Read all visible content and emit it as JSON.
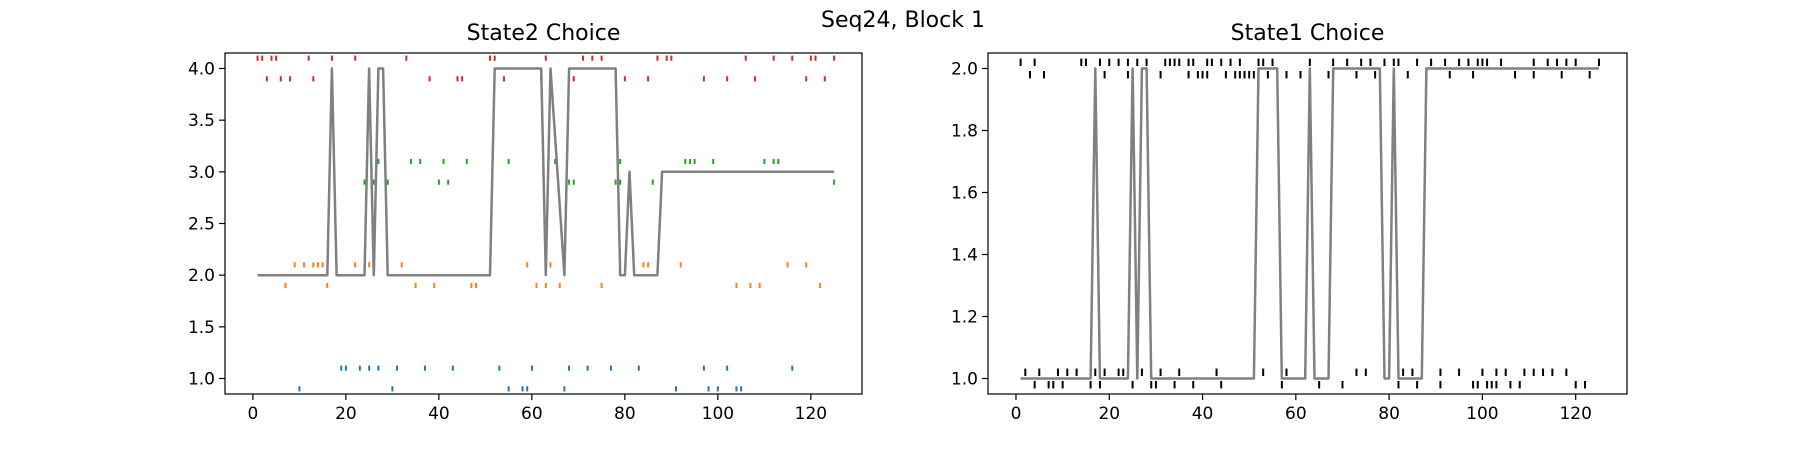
{
  "figure": {
    "suptitle": "Seq24, Block 1"
  },
  "colors": {
    "s1": "#1f77b4",
    "s2": "#ff7f0e",
    "s3": "#2ca02c",
    "s4": "#d62728",
    "s1panel": "#000000",
    "smooth": "#808080"
  },
  "chart_data": [
    {
      "type": "scatter+line",
      "title": "State2 Choice",
      "xlabel": "",
      "ylabel": "",
      "xlim": [
        -6,
        131
      ],
      "ylim": [
        0.85,
        4.15
      ],
      "xticks": [
        0,
        20,
        40,
        60,
        80,
        100,
        120
      ],
      "yticks": [
        1.0,
        1.5,
        2.0,
        2.5,
        3.0,
        3.5,
        4.0
      ],
      "ytick_labels": [
        "1.0",
        "1.5",
        "2.0",
        "2.5",
        "3.0",
        "3.5",
        "4.0"
      ],
      "grid": false,
      "raster": [
        {
          "level": 1,
          "color_key": "s1",
          "up": [
            19,
            20,
            23,
            25,
            27,
            31,
            37,
            43,
            53,
            60,
            68,
            72,
            77,
            83,
            97,
            102,
            116
          ],
          "down": [
            10,
            30,
            55,
            58,
            59,
            67,
            91,
            98,
            100,
            104,
            105
          ]
        },
        {
          "level": 2,
          "color_key": "s2",
          "up": [
            9,
            11,
            13,
            14,
            15,
            18,
            22,
            25,
            32,
            51,
            59,
            64,
            84,
            85,
            92,
            115,
            119
          ],
          "down": [
            7,
            16,
            35,
            39,
            47,
            48,
            61,
            63,
            66,
            75,
            104,
            107,
            109,
            122
          ]
        },
        {
          "level": 3,
          "color_key": "s3",
          "up": [
            27,
            34,
            36,
            41,
            46,
            55,
            65,
            79,
            93,
            94,
            95,
            99,
            110,
            112,
            113
          ],
          "down": [
            24,
            26,
            29,
            40,
            42,
            68,
            69,
            78,
            79,
            86,
            125
          ]
        },
        {
          "level": 4,
          "color_key": "s4",
          "up": [
            1,
            2,
            4,
            5,
            12,
            17,
            22,
            33,
            51,
            52,
            63,
            71,
            73,
            75,
            87,
            89,
            90,
            106,
            112,
            116,
            120,
            121,
            125
          ],
          "down": [
            3,
            6,
            8,
            13,
            38,
            44,
            45,
            54,
            62,
            69,
            78,
            80,
            85,
            97,
            102,
            108,
            119,
            123
          ]
        }
      ],
      "smoothed": {
        "name": "",
        "color_key": "smooth",
        "x": [
          1,
          16,
          17,
          18,
          24,
          25,
          26,
          27,
          28,
          29,
          51,
          52,
          62,
          63,
          64,
          67,
          68,
          78,
          79,
          80,
          81,
          82,
          83,
          87,
          88,
          125
        ],
        "y": [
          2,
          2,
          4,
          2,
          2,
          4,
          2,
          4,
          4,
          2,
          2,
          4,
          4,
          2,
          4,
          2,
          4,
          4,
          2,
          2,
          3,
          2,
          2,
          2,
          3,
          3
        ]
      }
    },
    {
      "type": "scatter+line",
      "title": "State1 Choice",
      "xlabel": "",
      "ylabel": "",
      "xlim": [
        -6,
        131
      ],
      "ylim": [
        0.95,
        2.05
      ],
      "xticks": [
        0,
        20,
        40,
        60,
        80,
        100,
        120
      ],
      "yticks": [
        1.0,
        1.2,
        1.4,
        1.6,
        1.8,
        2.0
      ],
      "ytick_labels": [
        "1.0",
        "1.2",
        "1.4",
        "1.6",
        "1.8",
        "2.0"
      ],
      "grid": false,
      "raster": [
        {
          "level": 1,
          "color_key": "s1panel",
          "up": [
            2,
            5,
            9,
            11,
            13,
            17,
            19,
            22,
            23,
            27,
            31,
            35,
            43,
            53,
            58,
            62,
            67,
            73,
            75,
            83,
            85,
            91,
            95,
            100,
            103,
            105,
            109,
            111,
            113,
            115,
            118
          ],
          "down": [
            4,
            7,
            8,
            10,
            16,
            18,
            25,
            29,
            30,
            34,
            38,
            44,
            57,
            65,
            70,
            82,
            86,
            91,
            98,
            99,
            101,
            102,
            103,
            106,
            108,
            120,
            122
          ]
        },
        {
          "level": 2,
          "color_key": "s1panel",
          "up": [
            1,
            4,
            14,
            15,
            18,
            20,
            22,
            24,
            26,
            28,
            32,
            33,
            34,
            35,
            37,
            38,
            41,
            42,
            44,
            46,
            48,
            52,
            53,
            55,
            63,
            68,
            71,
            74,
            76,
            79,
            81,
            82,
            86,
            89,
            92,
            95,
            97,
            99,
            100,
            101,
            104,
            111,
            114,
            116,
            118,
            120,
            125
          ],
          "down": [
            3,
            6,
            17,
            19,
            24,
            27,
            31,
            37,
            39,
            40,
            41,
            45,
            47,
            48,
            49,
            50,
            51,
            54,
            58,
            61,
            63,
            67,
            68,
            73,
            77,
            84,
            93,
            98,
            107,
            111,
            117,
            123
          ]
        }
      ],
      "smoothed": {
        "name": "",
        "color_key": "smooth",
        "x": [
          1,
          16,
          17,
          18,
          24,
          25,
          26,
          27,
          28,
          29,
          51,
          52,
          56,
          57,
          62,
          63,
          64,
          67,
          68,
          78,
          79,
          80,
          81,
          82,
          87,
          88,
          125
        ],
        "y": [
          1,
          1,
          2,
          1,
          1,
          2,
          1,
          2,
          2,
          1,
          1,
          2,
          2,
          1,
          1,
          2,
          1,
          1,
          2,
          2,
          1,
          1,
          2,
          1,
          1,
          2,
          2
        ]
      }
    }
  ]
}
